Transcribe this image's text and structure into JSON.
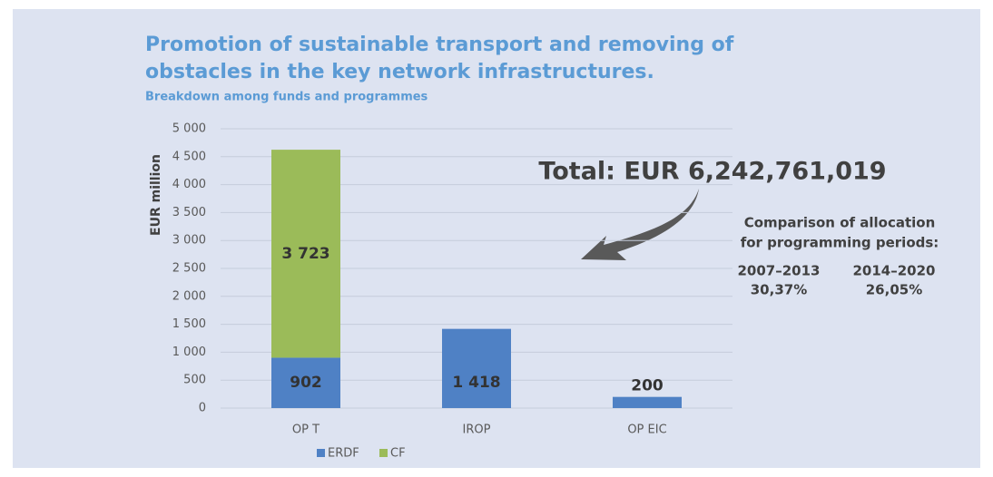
{
  "chart_data": {
    "type": "stacked_bar",
    "title": [
      "Promotion of sustainable transport and removing of",
      "obstacles in the key network infrastructures."
    ],
    "subtitle": "Breakdown among funds and programmes",
    "y_label": "EUR million",
    "categories": [
      "OP T",
      "IROP",
      "OP EIC"
    ],
    "series": [
      {
        "name": "ERDF",
        "color": "#4f81c5",
        "values": [
          902,
          1418,
          200
        ],
        "value_labels": [
          "902",
          "1 418",
          "200"
        ]
      },
      {
        "name": "CF",
        "color": "#9bbb59",
        "values": [
          3723,
          null,
          null
        ],
        "value_labels": [
          "3 723",
          null,
          null
        ]
      }
    ],
    "ylim": [
      0,
      5000
    ],
    "yticks": [
      0,
      500,
      {
        "value": 1000,
        "label": "1 000"
      },
      {
        "value": 1500,
        "label": "1 500"
      },
      {
        "value": 2000,
        "label": "2 000"
      },
      {
        "value": 2500,
        "label": "2 500"
      },
      {
        "value": 3000,
        "label": "3 000"
      },
      {
        "value": 3500,
        "label": "3 500"
      },
      {
        "value": 4000,
        "label": "4 000"
      },
      {
        "value": 4500,
        "label": "4 500"
      },
      {
        "value": 5000,
        "label": "5 000"
      }
    ],
    "grid": true,
    "legend": "bottom",
    "annotations": {
      "total": "Total: EUR 6,242,761,019",
      "comparison_title": [
        "Comparison of allocation",
        "for programming periods:"
      ],
      "periods": [
        {
          "label": "2007–2013",
          "value": "30,37%"
        },
        {
          "label": "2014–2020",
          "value": "26,05%"
        }
      ]
    }
  }
}
